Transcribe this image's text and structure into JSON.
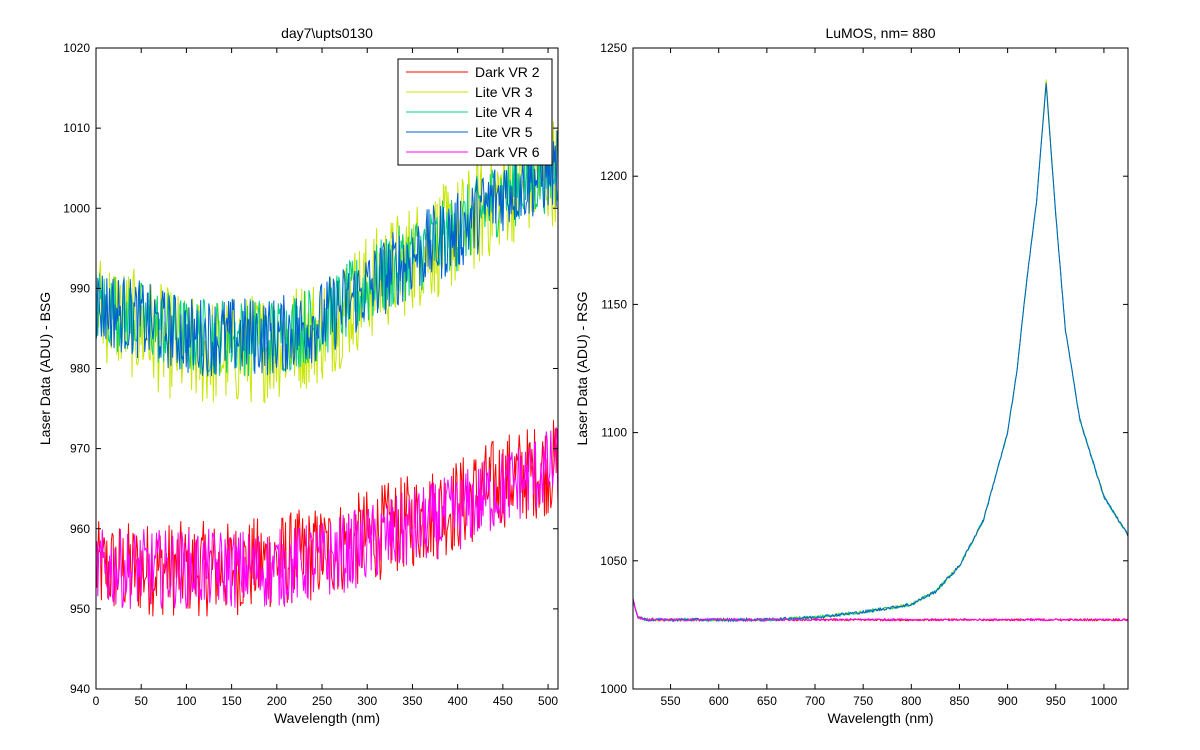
{
  "chart_data": [
    {
      "type": "line",
      "title": "day7\\upts0130",
      "xlabel": "Wavelength (nm)",
      "ylabel": "Laser Data (ADU) - BSG",
      "xlim": [
        0,
        511
      ],
      "ylim": [
        940,
        1020
      ],
      "xticks": [
        0,
        50,
        100,
        150,
        200,
        250,
        300,
        350,
        400,
        450,
        500
      ],
      "yticks": [
        940,
        950,
        960,
        970,
        980,
        990,
        1000,
        1010,
        1020
      ],
      "legend_position": "top-right",
      "grid": false,
      "series": [
        {
          "name": "Dark VR 2",
          "color": "#ff0000",
          "x": [
            0,
            50,
            100,
            150,
            200,
            250,
            300,
            350,
            400,
            450,
            511
          ],
          "y": [
            955,
            955,
            955,
            955,
            956,
            957,
            959,
            961,
            963,
            966,
            968
          ],
          "noise": 6
        },
        {
          "name": "Lite VR 3",
          "color": "#c8e600",
          "x": [
            0,
            50,
            100,
            150,
            200,
            250,
            300,
            350,
            400,
            450,
            511
          ],
          "y": [
            988,
            985,
            982,
            982,
            983,
            985,
            990,
            994,
            997,
            1002,
            1005
          ],
          "noise": 7
        },
        {
          "name": "Lite VR 4",
          "color": "#00d080",
          "x": [
            0,
            50,
            100,
            150,
            200,
            250,
            300,
            350,
            400,
            450,
            511
          ],
          "y": [
            988,
            986,
            984,
            984,
            984,
            986,
            990,
            994,
            997,
            1002,
            1005
          ],
          "noise": 5
        },
        {
          "name": "Lite VR 5",
          "color": "#0060d0",
          "x": [
            0,
            50,
            100,
            150,
            200,
            250,
            300,
            350,
            400,
            450,
            511
          ],
          "y": [
            988,
            986,
            984,
            984,
            984,
            986,
            990,
            994,
            997,
            1002,
            1005
          ],
          "noise": 5
        },
        {
          "name": "Dark VR 6",
          "color": "#ff00ff",
          "x": [
            0,
            50,
            100,
            150,
            200,
            250,
            300,
            350,
            400,
            450,
            511
          ],
          "y": [
            955,
            955,
            955,
            955,
            955,
            956,
            958,
            960,
            962,
            965,
            968
          ],
          "noise": 5
        }
      ]
    },
    {
      "type": "line",
      "title": "LuMOS, nm= 880",
      "xlabel": "Wavelength (nm)",
      "ylabel": "Laser Data (ADU) - RSG",
      "xlim": [
        511,
        1025
      ],
      "ylim": [
        1000,
        1250
      ],
      "xticks": [
        550,
        600,
        650,
        700,
        750,
        800,
        850,
        900,
        950,
        1000
      ],
      "yticks": [
        1000,
        1050,
        1100,
        1150,
        1200,
        1250
      ],
      "grid": false,
      "series": [
        {
          "name": "Dark VR 2",
          "color": "#ff0000",
          "x": [
            511,
            516,
            525,
            600,
            700,
            800,
            900,
            1000,
            1025
          ],
          "y": [
            1035,
            1028,
            1027,
            1027,
            1027,
            1027,
            1027,
            1027,
            1027
          ],
          "noise": 0.4
        },
        {
          "name": "Lite VR 3",
          "color": "#c8e600",
          "x": [
            511,
            516,
            525,
            600,
            650,
            700,
            750,
            800,
            825,
            850,
            875,
            900,
            910,
            920,
            930,
            940,
            950,
            960,
            975,
            1000,
            1025
          ],
          "y": [
            1035,
            1028,
            1027,
            1027,
            1027,
            1028,
            1030,
            1033,
            1038,
            1048,
            1066,
            1100,
            1125,
            1160,
            1190,
            1238,
            1185,
            1140,
            1105,
            1075,
            1060
          ],
          "noise": 0.6
        },
        {
          "name": "Lite VR 4",
          "color": "#00d080",
          "x": [
            511,
            516,
            525,
            600,
            650,
            700,
            750,
            800,
            825,
            850,
            875,
            900,
            910,
            920,
            930,
            940,
            950,
            960,
            975,
            1000,
            1025
          ],
          "y": [
            1035,
            1028,
            1027,
            1027,
            1027,
            1028,
            1030,
            1033,
            1038,
            1048,
            1066,
            1100,
            1125,
            1160,
            1190,
            1236,
            1185,
            1140,
            1105,
            1075,
            1060
          ],
          "noise": 0.6
        },
        {
          "name": "Lite VR 5",
          "color": "#0060d0",
          "x": [
            511,
            516,
            525,
            600,
            650,
            700,
            750,
            800,
            825,
            850,
            875,
            900,
            910,
            920,
            930,
            940,
            950,
            960,
            975,
            1000,
            1025
          ],
          "y": [
            1035,
            1028,
            1027,
            1027,
            1027,
            1028,
            1030,
            1033,
            1038,
            1048,
            1066,
            1100,
            1125,
            1160,
            1190,
            1236,
            1185,
            1140,
            1105,
            1075,
            1060
          ],
          "noise": 0.6
        },
        {
          "name": "Dark VR 6",
          "color": "#ff00ff",
          "x": [
            511,
            516,
            525,
            600,
            700,
            800,
            900,
            1000,
            1025
          ],
          "y": [
            1035,
            1028,
            1027,
            1027,
            1027,
            1027,
            1027,
            1027,
            1027
          ],
          "noise": 0.4
        }
      ]
    }
  ]
}
